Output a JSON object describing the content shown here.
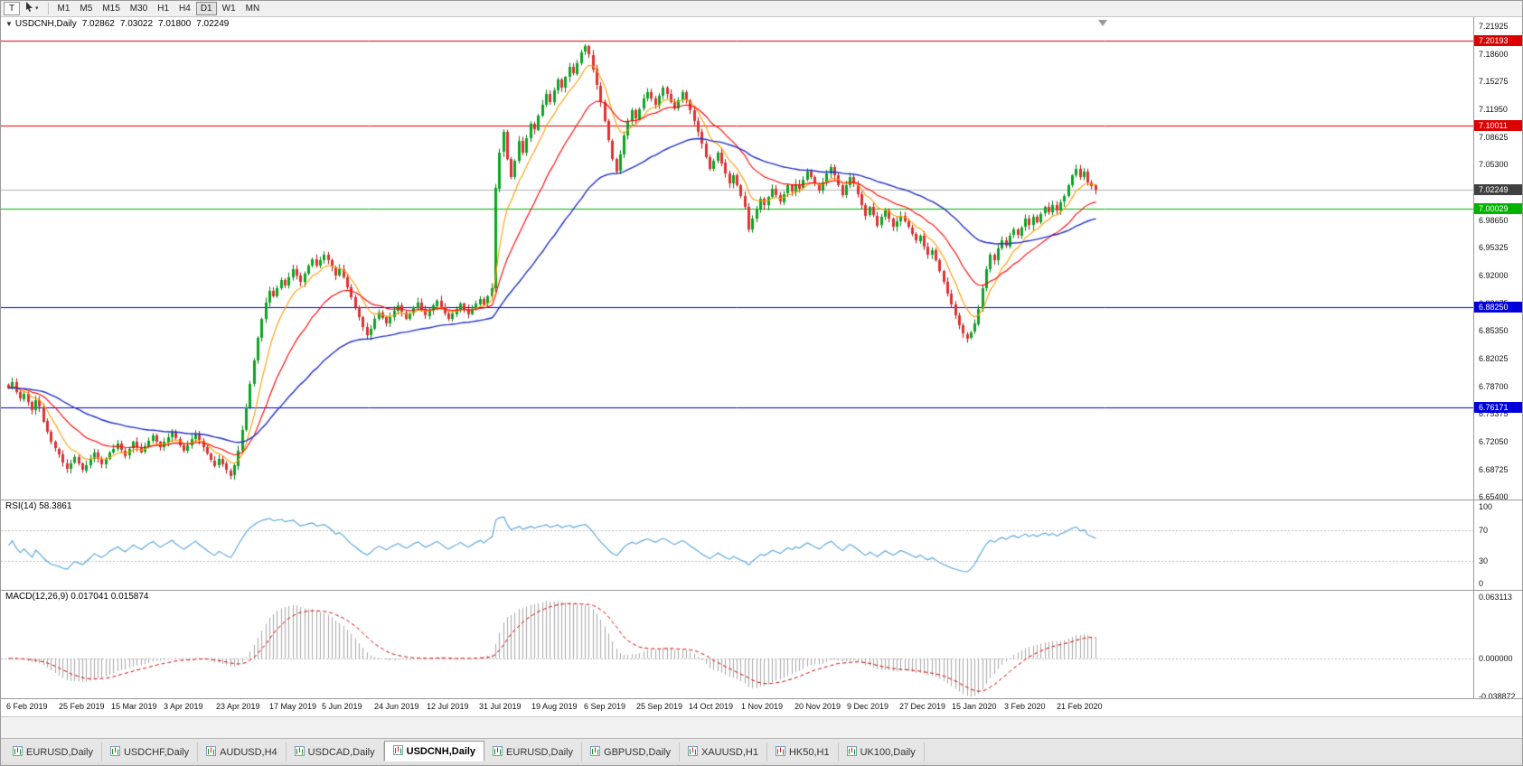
{
  "toolbar": {
    "text_tool_label": "T",
    "timeframes": [
      "M1",
      "M5",
      "M15",
      "M30",
      "H1",
      "H4",
      "D1",
      "W1",
      "MN"
    ],
    "active_timeframe": "D1"
  },
  "chart": {
    "title": "USDCNH,Daily",
    "ohlc": {
      "open": "7.02862",
      "high": "7.03022",
      "low": "7.01800",
      "close": "7.02249"
    },
    "rsi_label": "RSI(14)",
    "rsi_value": "58.3861",
    "macd_label": "MACD(12,26,9)",
    "macd_values": "0.017041 0.015874"
  },
  "chart_data": {
    "type": "candlestick",
    "title": "USDCNH,Daily",
    "symbol": "USDCNH",
    "timeframe": "Daily",
    "x_dates": [
      "6 Feb 2019",
      "25 Feb 2019",
      "15 Mar 2019",
      "3 Apr 2019",
      "23 Apr 2019",
      "17 May 2019",
      "5 Jun 2019",
      "24 Jun 2019",
      "12 Jul 2019",
      "31 Jul 2019",
      "19 Aug 2019",
      "6 Sep 2019",
      "25 Sep 2019",
      "14 Oct 2019",
      "1 Nov 2019",
      "20 Nov 2019",
      "9 Dec 2019",
      "27 Dec 2019",
      "15 Jan 2020",
      "3 Feb 2020",
      "21 Feb 2020"
    ],
    "closes": [
      6.785,
      6.792,
      6.78,
      6.772,
      6.778,
      6.768,
      6.758,
      6.77,
      6.762,
      6.745,
      6.732,
      6.72,
      6.712,
      6.705,
      6.695,
      6.688,
      6.695,
      6.702,
      6.694,
      6.686,
      6.692,
      6.7,
      6.708,
      6.7,
      6.694,
      6.7,
      6.708,
      6.712,
      6.718,
      6.71,
      6.704,
      6.712,
      6.72,
      6.714,
      6.708,
      6.715,
      6.722,
      6.728,
      6.72,
      6.714,
      6.72,
      6.726,
      6.732,
      6.724,
      6.716,
      6.71,
      6.716,
      6.724,
      6.73,
      6.722,
      6.714,
      6.706,
      6.698,
      6.692,
      6.7,
      6.694,
      6.686,
      6.68,
      6.692,
      6.71,
      6.735,
      6.762,
      6.79,
      6.818,
      6.845,
      6.868,
      6.888,
      6.902,
      6.895,
      6.905,
      6.915,
      6.908,
      6.918,
      6.928,
      6.92,
      6.912,
      6.922,
      6.932,
      6.94,
      6.932,
      6.938,
      6.945,
      6.938,
      6.93,
      6.92,
      6.928,
      6.918,
      6.906,
      6.894,
      6.882,
      6.87,
      6.858,
      6.848,
      6.856,
      6.868,
      6.876,
      6.87,
      6.862,
      6.87,
      6.878,
      6.884,
      6.876,
      6.868,
      6.874,
      6.882,
      6.888,
      6.88,
      6.872,
      6.878,
      6.884,
      6.89,
      6.882,
      6.874,
      6.868,
      6.874,
      6.88,
      6.886,
      6.88,
      6.874,
      6.88,
      6.886,
      6.892,
      6.886,
      6.895,
      6.905,
      7.025,
      7.068,
      7.092,
      7.06,
      7.038,
      7.058,
      7.082,
      7.068,
      7.085,
      7.102,
      7.095,
      7.112,
      7.125,
      7.138,
      7.128,
      7.142,
      7.155,
      7.145,
      7.158,
      7.17,
      7.162,
      7.175,
      7.188,
      7.195,
      7.185,
      7.168,
      7.148,
      7.128,
      7.105,
      7.082,
      7.06,
      7.045,
      7.065,
      7.088,
      7.105,
      7.118,
      7.108,
      7.12,
      7.132,
      7.14,
      7.132,
      7.124,
      7.136,
      7.146,
      7.138,
      7.128,
      7.12,
      7.13,
      7.14,
      7.13,
      7.118,
      7.105,
      7.092,
      7.078,
      7.062,
      7.048,
      7.058,
      7.068,
      7.055,
      7.042,
      7.03,
      7.04,
      7.028,
      7.015,
      7.002,
      6.975,
      6.988,
      7.0,
      7.012,
      7.004,
      7.014,
      7.024,
      7.016,
      7.008,
      7.018,
      7.028,
      7.02,
      7.03,
      7.025,
      7.035,
      7.045,
      7.038,
      7.03,
      7.022,
      7.032,
      7.042,
      7.05,
      7.04,
      7.028,
      7.016,
      7.028,
      7.038,
      7.03,
      7.018,
      7.005,
      6.992,
      7.002,
      6.992,
      6.98,
      6.99,
      6.998,
      6.988,
      6.978,
      6.985,
      6.992,
      6.985,
      6.978,
      6.97,
      6.962,
      6.968,
      6.955,
      6.945,
      6.95,
      6.938,
      6.925,
      6.912,
      6.898,
      6.885,
      6.872,
      6.86,
      6.85,
      6.845,
      6.852,
      6.862,
      6.88,
      6.905,
      6.928,
      6.945,
      6.938,
      6.952,
      6.962,
      6.955,
      6.968,
      6.975,
      6.968,
      6.978,
      6.988,
      6.98,
      6.99,
      6.984,
      6.994,
      7.002,
      6.996,
      7.005,
      6.998,
      7.008,
      7.015,
      7.028,
      7.04,
      7.048,
      7.038,
      7.045,
      7.032,
      7.028,
      7.0225
    ],
    "price_axis": {
      "range": [
        6.6511,
        7.2301
      ],
      "ticks": [
        "7.21925",
        "7.18600",
        "7.15275",
        "7.11950",
        "7.08625",
        "7.05300",
        "7.01975",
        "6.98650",
        "6.95325",
        "6.92000",
        "6.88675",
        "6.85350",
        "6.82025",
        "6.78700",
        "6.75375",
        "6.72050",
        "6.68725",
        "6.65400"
      ]
    },
    "levels": [
      {
        "label": "7.20193",
        "color": "#dd0000"
      },
      {
        "label": "7.10011",
        "color": "#dd0000"
      },
      {
        "label": "7.00029",
        "color": "#00b400"
      },
      {
        "label": "6.88250",
        "color": "#0000dd"
      },
      {
        "label": "6.76171",
        "color": "#0000dd"
      }
    ],
    "current_price": {
      "label": "7.02249",
      "line_color": "#b2b2b2",
      "box_color": "#404040"
    },
    "ma": [
      {
        "period": 8,
        "color": "#ff9c00"
      },
      {
        "period": 21,
        "color": "#ff0000"
      },
      {
        "period": 55,
        "color": "#2230c8"
      }
    ],
    "rsi": {
      "period": 14,
      "value": "58.3861",
      "range": [
        -8,
        110
      ],
      "ticks": [
        "100",
        "70",
        "30",
        "0"
      ],
      "level_lines": [
        70,
        30
      ],
      "color": "#54a4dc"
    },
    "macd": {
      "fast": 12,
      "slow": 26,
      "signal": 9,
      "range": [
        -0.0408,
        0.0705
      ],
      "ticks": [
        "0.063113",
        "0.000000",
        "-0.038872"
      ],
      "hist_color": "#a8a8a8",
      "signal_color": "#dd0000"
    },
    "candle_up": "#0aa520",
    "candle_down": "#e03030",
    "candle_up_dark": "#067d16",
    "candle_down_dark": "#b01818",
    "shift_fraction": 0.741,
    "legend_position": "none",
    "grid": "off"
  },
  "tabs": [
    {
      "label": "EURUSD,Daily",
      "active": false
    },
    {
      "label": "USDCHF,Daily",
      "active": false
    },
    {
      "label": "AUDUSD,H4",
      "active": false
    },
    {
      "label": "USDCAD,Daily",
      "active": false
    },
    {
      "label": "USDCNH,Daily",
      "active": true
    },
    {
      "label": "EURUSD,Daily",
      "active": false
    },
    {
      "label": "GBPUSD,Daily",
      "active": false
    },
    {
      "label": "XAUUSD,H1",
      "active": false
    },
    {
      "label": "HK50,H1",
      "active": false
    },
    {
      "label": "UK100,Daily",
      "active": false
    }
  ]
}
